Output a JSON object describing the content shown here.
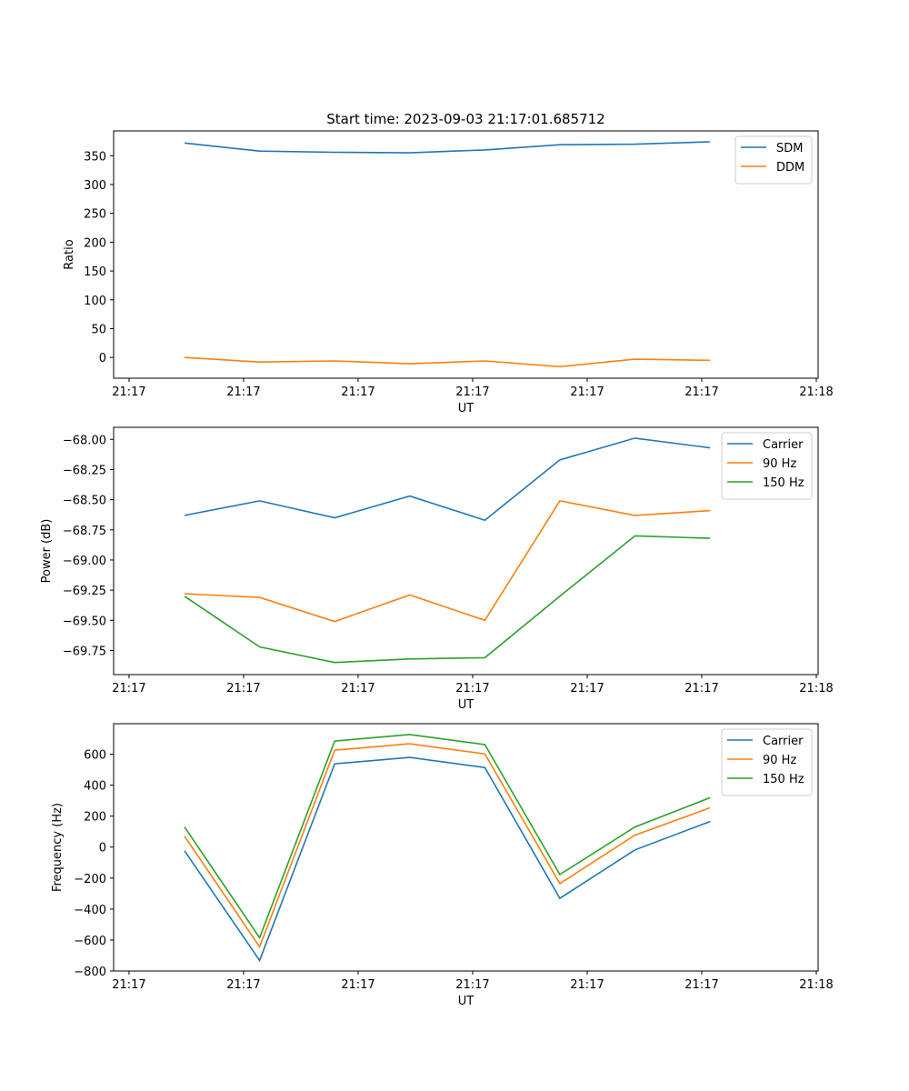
{
  "title": "Start time: 2023-09-03 21:17:01.685712",
  "chart_data": [
    {
      "type": "line",
      "title": "Start time: 2023-09-03 21:17:01.685712",
      "xlabel": "UT",
      "ylabel": "Ratio",
      "x": [
        0,
        1,
        2,
        3,
        4,
        5,
        6,
        7
      ],
      "xlim": [
        -0.945,
        8.44
      ],
      "xticks": [
        -0.74,
        0.786,
        2.312,
        3.838,
        5.364,
        6.89,
        8.416
      ],
      "xtick_labels": [
        "21:17",
        "21:17",
        "21:17",
        "21:17",
        "21:17",
        "21:17",
        "21:18"
      ],
      "ylim": [
        -36,
        393
      ],
      "yticks": [
        0,
        50,
        100,
        150,
        200,
        250,
        300,
        350
      ],
      "ytick_labels": [
        "0",
        "50",
        "100",
        "150",
        "200",
        "250",
        "300",
        "350"
      ],
      "legend": "top-right",
      "series": [
        {
          "name": "SDM",
          "color": "#1f77b4",
          "values": [
            372,
            358,
            356,
            355,
            360,
            369,
            370,
            374
          ]
        },
        {
          "name": "DDM",
          "color": "#ff7f0e",
          "values": [
            0,
            -8,
            -6,
            -11,
            -6,
            -16,
            -3,
            -5
          ]
        }
      ]
    },
    {
      "type": "line",
      "title": "",
      "xlabel": "UT",
      "ylabel": "Power (dB)",
      "x": [
        0,
        1,
        2,
        3,
        4,
        5,
        6,
        7
      ],
      "xlim": [
        -0.945,
        8.44
      ],
      "xticks": [
        -0.74,
        0.786,
        2.312,
        3.838,
        5.364,
        6.89,
        8.416
      ],
      "xtick_labels": [
        "21:17",
        "21:17",
        "21:17",
        "21:17",
        "21:17",
        "21:17",
        "21:18"
      ],
      "ylim": [
        -69.95,
        -67.9
      ],
      "yticks": [
        -68.0,
        -68.25,
        -68.5,
        -68.75,
        -69.0,
        -69.25,
        -69.5,
        -69.75
      ],
      "ytick_labels": [
        "−68.00",
        "−68.25",
        "−68.50",
        "−68.75",
        "−69.00",
        "−69.25",
        "−69.50",
        "−69.75"
      ],
      "legend": "top-right",
      "series": [
        {
          "name": "Carrier",
          "color": "#1f77b4",
          "values": [
            -68.63,
            -68.51,
            -68.65,
            -68.47,
            -68.67,
            -68.17,
            -67.99,
            -68.07
          ]
        },
        {
          "name": "90 Hz",
          "color": "#ff7f0e",
          "values": [
            -69.28,
            -69.31,
            -69.51,
            -69.29,
            -69.5,
            -68.51,
            -68.63,
            -68.59
          ]
        },
        {
          "name": "150 Hz",
          "color": "#2ca02c",
          "values": [
            -69.3,
            -69.72,
            -69.85,
            -69.82,
            -69.81,
            -69.3,
            -68.8,
            -68.82
          ]
        }
      ]
    },
    {
      "type": "line",
      "title": "",
      "xlabel": "UT",
      "ylabel": "Frequency (Hz)",
      "x": [
        0,
        1,
        2,
        3,
        4,
        5,
        6,
        7
      ],
      "xlim": [
        -0.945,
        8.44
      ],
      "xticks": [
        -0.74,
        0.786,
        2.312,
        3.838,
        5.364,
        6.89,
        8.416
      ],
      "xtick_labels": [
        "21:17",
        "21:17",
        "21:17",
        "21:17",
        "21:17",
        "21:17",
        "21:18"
      ],
      "ylim": [
        -800,
        797
      ],
      "yticks": [
        -800,
        -600,
        -400,
        -200,
        0,
        200,
        400,
        600
      ],
      "ytick_labels": [
        "−800",
        "−600",
        "−400",
        "−200",
        "0",
        "200",
        "400",
        "600"
      ],
      "legend": "top-right",
      "series": [
        {
          "name": "Carrier",
          "color": "#1f77b4",
          "values": [
            -24,
            -732,
            538,
            579,
            514,
            -331,
            -18,
            165
          ]
        },
        {
          "name": "90 Hz",
          "color": "#ff7f0e",
          "values": [
            71,
            -644,
            626,
            667,
            602,
            -236,
            77,
            254
          ]
        },
        {
          "name": "150 Hz",
          "color": "#2ca02c",
          "values": [
            130,
            -585,
            685,
            727,
            662,
            -177,
            130,
            319
          ]
        }
      ]
    }
  ]
}
